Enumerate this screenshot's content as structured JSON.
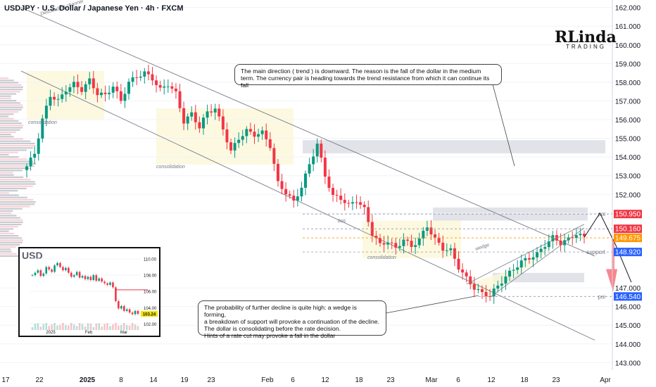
{
  "header": {
    "title": "USDJPY · U.S. Dollar / Japanese Yen · 4h · FXCM"
  },
  "logo": {
    "main": "RLinda",
    "sub": "TRADING"
  },
  "notes": {
    "top": "The main direction ( trend ) is downward. The reason is the fall of the dollar in the medium term. The currency pair is heading towards the trend resistance from which it can continue its fall",
    "bottom_lines": [
      "The probability of further decline is quite high: a wedge is forming,",
      "a breakdown of support will provoke a continuation of the decline.",
      "The dollar is consolidating before the rate decision.",
      "Hints of a rate cut may provoke a fall in the dollar"
    ]
  },
  "colors": {
    "bull": "#089981",
    "bear": "#f23645",
    "zone_yellow": "#fbf7d8",
    "zone_gray": "#d9dce3",
    "poi_label": "#f23645",
    "support_label": "#2962ff",
    "price_label": "#ff9800",
    "annotation": "#787b86"
  },
  "chart_data": {
    "type": "candlestick",
    "symbol": "USDJPY",
    "timeframe": "4h",
    "x_tick_labels": [
      "17",
      "22",
      "2025",
      "8",
      "14",
      "19",
      "23",
      "Feb",
      "6",
      "12",
      "18",
      "23",
      "Mar",
      "6",
      "12",
      "18",
      "23",
      "Apr"
    ],
    "y_ticks": [
      162.0,
      161.0,
      160.0,
      159.0,
      158.0,
      157.0,
      156.0,
      155.0,
      154.0,
      153.0,
      152.0,
      151.0,
      147.0,
      146.0,
      145.0,
      144.0,
      143.0
    ],
    "ylim": [
      142.6,
      162.4
    ],
    "price_path": [
      [
        0,
        153.5
      ],
      [
        2,
        154.2
      ],
      [
        4,
        156.0
      ],
      [
        6,
        157.3
      ],
      [
        8,
        157.0
      ],
      [
        10,
        157.6
      ],
      [
        12,
        157.9
      ],
      [
        14,
        157.6
      ],
      [
        16,
        158.1
      ],
      [
        18,
        157.4
      ],
      [
        20,
        157.3
      ],
      [
        22,
        157.8
      ],
      [
        24,
        157.0
      ],
      [
        26,
        158.0
      ],
      [
        28,
        158.3
      ],
      [
        30,
        158.5
      ],
      [
        32,
        158.2
      ],
      [
        34,
        157.6
      ],
      [
        36,
        157.9
      ],
      [
        38,
        157.4
      ],
      [
        40,
        155.9
      ],
      [
        42,
        156.3
      ],
      [
        44,
        155.6
      ],
      [
        46,
        156.4
      ],
      [
        48,
        156.6
      ],
      [
        50,
        155.5
      ],
      [
        52,
        154.3
      ],
      [
        54,
        155.0
      ],
      [
        56,
        155.4
      ],
      [
        58,
        155.2
      ],
      [
        60,
        155.3
      ],
      [
        62,
        154.6
      ],
      [
        64,
        152.6
      ],
      [
        66,
        152.1
      ],
      [
        68,
        151.6
      ],
      [
        70,
        152.4
      ],
      [
        72,
        153.6
      ],
      [
        74,
        154.7
      ],
      [
        76,
        153.0
      ],
      [
        78,
        151.9
      ],
      [
        80,
        151.8
      ],
      [
        82,
        151.4
      ],
      [
        84,
        151.7
      ],
      [
        86,
        151.2
      ],
      [
        88,
        149.9
      ],
      [
        90,
        149.3
      ],
      [
        92,
        149.5
      ],
      [
        94,
        149.1
      ],
      [
        96,
        149.6
      ],
      [
        98,
        149.2
      ],
      [
        100,
        149.6
      ],
      [
        102,
        150.3
      ],
      [
        104,
        149.6
      ],
      [
        106,
        149.1
      ],
      [
        108,
        149.0
      ],
      [
        110,
        148.1
      ],
      [
        112,
        147.5
      ],
      [
        114,
        147.0
      ],
      [
        116,
        146.7
      ],
      [
        118,
        146.6
      ],
      [
        120,
        147.1
      ],
      [
        122,
        147.6
      ],
      [
        124,
        148.0
      ],
      [
        126,
        148.4
      ],
      [
        128,
        148.6
      ],
      [
        130,
        148.8
      ],
      [
        132,
        149.3
      ],
      [
        134,
        149.7
      ],
      [
        136,
        149.4
      ],
      [
        138,
        149.6
      ],
      [
        140,
        149.9
      ],
      [
        142,
        149.7
      ]
    ],
    "levels": [
      {
        "label": "poi",
        "value": 150.95
      },
      {
        "label": "",
        "value": 150.16
      },
      {
        "label": "",
        "value": 149.675
      },
      {
        "label": "support",
        "value": 148.92
      },
      {
        "label": "poi",
        "value": 146.54
      }
    ],
    "price_labels": [
      "150.950",
      "150.160",
      "149.675",
      "148.920",
      "146.540"
    ],
    "annotations": [
      "Descending channel",
      "consolidation",
      "consolidation",
      "consolidation",
      "bos",
      "wedge",
      "poi",
      "poi",
      "support"
    ],
    "channel": {
      "upper": [
        [
          0,
          162.0
        ],
        [
          142,
          148.7
        ]
      ],
      "lower": [
        [
          0,
          158.6
        ],
        [
          142,
          144.2
        ]
      ]
    },
    "projection": [
      [
        134,
        149.7
      ],
      [
        138,
        151.0
      ],
      [
        142,
        149.3
      ],
      [
        146,
        147.3
      ]
    ]
  },
  "inset": {
    "title": "USD",
    "y_ticks": [
      "110.00",
      "108.00",
      "106.00",
      "104.00",
      "102.00"
    ],
    "x_ticks": [
      "2025",
      "Feb",
      "Mar"
    ],
    "last_price": "103.24",
    "values": [
      108.0,
      108.3,
      108.6,
      107.9,
      108.2,
      109.0,
      108.7,
      108.4,
      109.2,
      109.5,
      109.0,
      108.6,
      108.9,
      108.3,
      107.8,
      108.0,
      108.4,
      107.7,
      107.9,
      107.5,
      107.8,
      107.4,
      108.0,
      107.3,
      107.6,
      107.2,
      107.0,
      106.8,
      107.1,
      106.5,
      104.8,
      103.9,
      104.2,
      103.6,
      103.8,
      103.4,
      103.2,
      103.6,
      103.24
    ]
  }
}
